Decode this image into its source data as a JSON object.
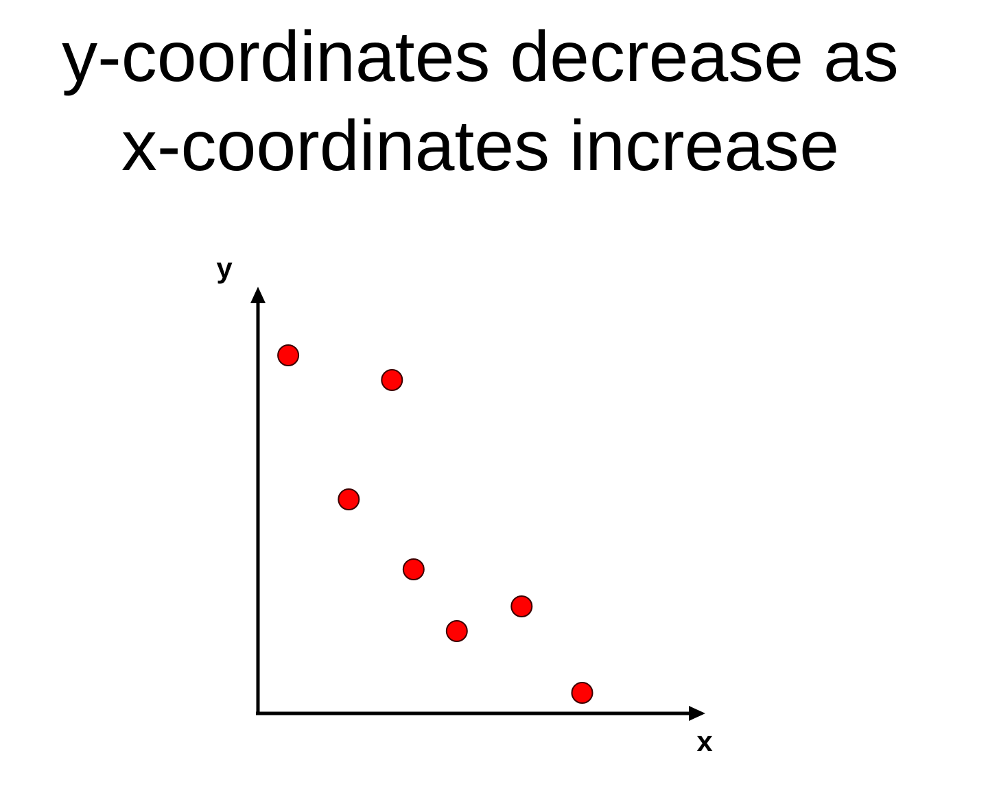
{
  "title_lines": [
    "y-coordinates decrease as",
    "x-coordinates increase"
  ],
  "colors": {
    "point_fill": "#ff0000",
    "point_stroke": "#3a0000",
    "axis": "#000000"
  },
  "chart_data": {
    "type": "scatter",
    "title": "y-coordinates decrease as x-coordinates increase",
    "xlabel": "x",
    "ylabel": "y",
    "xlim": [
      0,
      10
    ],
    "ylim": [
      0,
      10
    ],
    "grid": false,
    "legend": "none",
    "series": [
      {
        "points": [
          {
            "x": 0.7,
            "y": 8.7
          },
          {
            "x": 3.1,
            "y": 8.1
          },
          {
            "x": 2.1,
            "y": 5.2
          },
          {
            "x": 3.6,
            "y": 3.5
          },
          {
            "x": 4.6,
            "y": 2.0
          },
          {
            "x": 6.1,
            "y": 2.6
          },
          {
            "x": 7.5,
            "y": 0.5
          }
        ]
      }
    ]
  }
}
